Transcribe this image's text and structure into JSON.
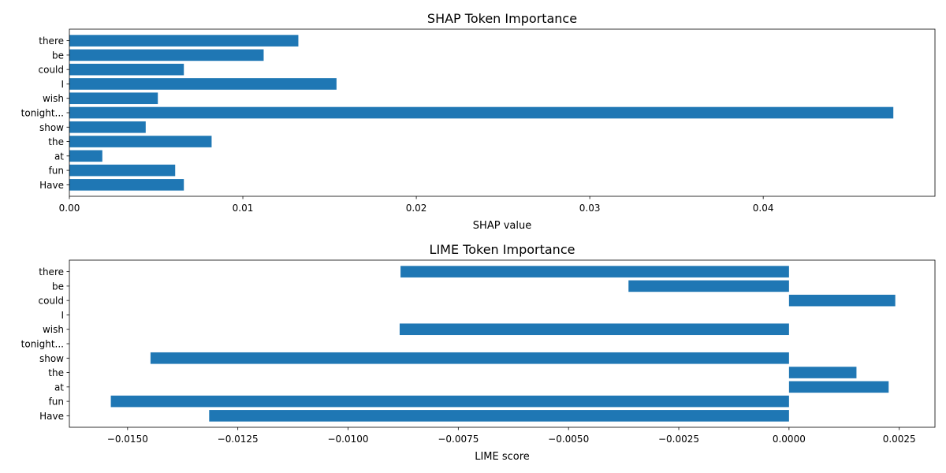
{
  "chart_data": [
    {
      "type": "bar",
      "orientation": "horizontal",
      "title": "SHAP Token Importance",
      "xlabel": "SHAP value",
      "ylabel": "",
      "categories": [
        "Have",
        "fun",
        "at",
        "the",
        "show",
        "tonight...",
        "wish",
        "I",
        "could",
        "be",
        "there"
      ],
      "values": [
        0.0066,
        0.0061,
        0.0019,
        0.0082,
        0.0044,
        0.0475,
        0.0051,
        0.0154,
        0.0066,
        0.0112,
        0.0132
      ],
      "xlim": [
        0.0,
        0.0499
      ],
      "xticks": [
        0.0,
        0.01,
        0.02,
        0.03,
        0.04
      ],
      "xtick_labels": [
        "0.00",
        "0.01",
        "0.02",
        "0.03",
        "0.04"
      ],
      "color": "#1f77b4",
      "grid": false,
      "legend": "none"
    },
    {
      "type": "bar",
      "orientation": "horizontal",
      "title": "LIME Token Importance",
      "xlabel": "LIME score",
      "ylabel": "",
      "categories": [
        "Have",
        "fun",
        "at",
        "the",
        "show",
        "tonight...",
        "wish",
        "I",
        "could",
        "be",
        "there"
      ],
      "values": [
        -0.01315,
        -0.01538,
        0.00226,
        0.00153,
        -0.01448,
        0.0,
        -0.00883,
        0.0,
        0.00241,
        -0.00364,
        -0.00881
      ],
      "xlim": [
        -0.01632,
        0.00331
      ],
      "xticks": [
        -0.015,
        -0.0125,
        -0.01,
        -0.0075,
        -0.005,
        -0.0025,
        0.0,
        0.0025
      ],
      "xtick_labels": [
        "−0.0150",
        "−0.0125",
        "−0.0100",
        "−0.0075",
        "−0.0050",
        "−0.0025",
        "0.0000",
        "0.0025"
      ],
      "color": "#1f77b4",
      "grid": false,
      "legend": "none"
    }
  ]
}
